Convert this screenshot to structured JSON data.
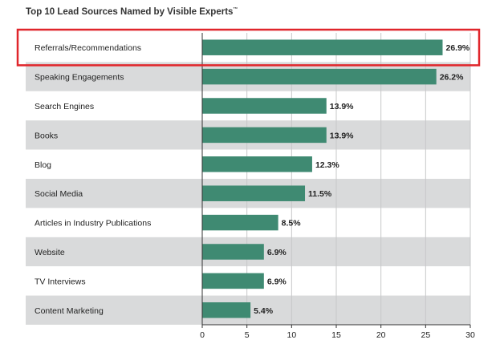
{
  "title": "Top 10 Lead Sources Named by Visible Experts",
  "title_mark": "™",
  "chart_data": {
    "type": "bar",
    "orientation": "horizontal",
    "title": "Top 10 Lead Sources Named by Visible Experts™",
    "categories": [
      "Referrals/Recommendations",
      "Speaking Engagements",
      "Search Engines",
      "Books",
      "Blog",
      "Social Media",
      "Articles in Industry Publications",
      "Website",
      "TV Interviews",
      "Content Marketing"
    ],
    "values": [
      26.9,
      26.2,
      13.9,
      13.9,
      12.3,
      11.5,
      8.5,
      6.9,
      6.9,
      5.4
    ],
    "value_labels": [
      "26.9%",
      "26.2%",
      "13.9%",
      "13.9%",
      "12.3%",
      "11.5%",
      "8.5%",
      "6.9%",
      "6.9%",
      "5.4%"
    ],
    "xlim": [
      0,
      30
    ],
    "xticks": [
      "0",
      "5",
      "10",
      "15",
      "20",
      "25",
      "30"
    ],
    "xtick_values": [
      0,
      5,
      10,
      15,
      20,
      25,
      30
    ],
    "xlabel": "",
    "ylabel": "",
    "highlighted_category": "Referrals/Recommendations",
    "grid": true,
    "bar_color": "#3f8a72",
    "alt_row_color": "#d9dadb",
    "highlight_color": "#e0262b"
  }
}
